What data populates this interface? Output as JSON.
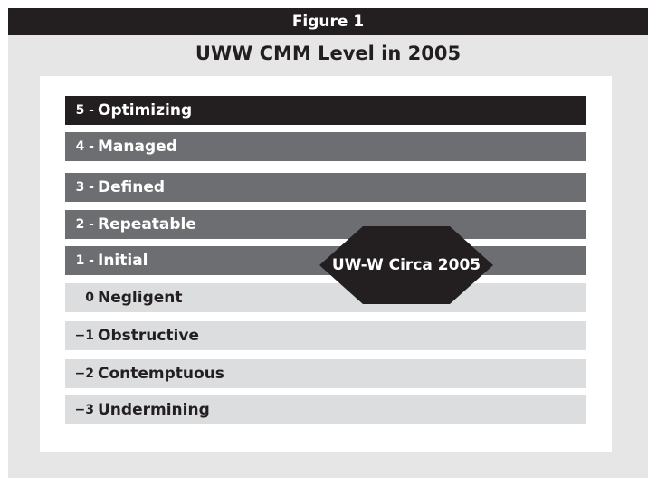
{
  "figure": {
    "label": "Figure 1",
    "title": "UWW CMM Level in 2005"
  },
  "levels": [
    {
      "number": "5 -",
      "name": "Optimizing",
      "shade": "dark"
    },
    {
      "number": "4 -",
      "name": "Managed",
      "shade": "mid"
    },
    {
      "number": "3 -",
      "name": "Defined",
      "shade": "mid"
    },
    {
      "number": "2 -",
      "name": "Repeatable",
      "shade": "mid"
    },
    {
      "number": "1 -",
      "name": "Initial",
      "shade": "mid"
    },
    {
      "number": "0",
      "name": "Negligent",
      "shade": "light"
    },
    {
      "number": "−1",
      "name": "Obstructive",
      "shade": "light"
    },
    {
      "number": "−2",
      "name": "Contemptuous",
      "shade": "light"
    },
    {
      "number": "−3",
      "name": "Undermining",
      "shade": "light"
    }
  ],
  "marker": {
    "label": "UW-W Circa 2005"
  },
  "colors": {
    "dark": "#231f20",
    "mid": "#6d6e71",
    "light": "#dcddde",
    "frame": "#e6e6e6"
  }
}
